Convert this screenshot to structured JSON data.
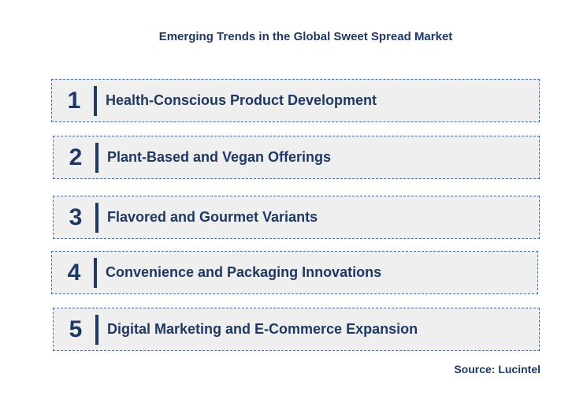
{
  "title": "Emerging Trends in the Global Sweet Spread Market",
  "trends": [
    {
      "number": "1",
      "label": "Health-Conscious Product Development"
    },
    {
      "number": "2",
      "label": "Plant-Based and Vegan Offerings"
    },
    {
      "number": "3",
      "label": "Flavored and Gourmet Variants"
    },
    {
      "number": "4",
      "label": "Convenience and Packaging Innovations"
    },
    {
      "number": "5",
      "label": "Digital Marketing and E-Commerce Expansion"
    }
  ],
  "source": "Source: Lucintel",
  "colors": {
    "text": "#1f3864",
    "box_fill": "#efefef",
    "box_border": "#4a6a9a"
  }
}
